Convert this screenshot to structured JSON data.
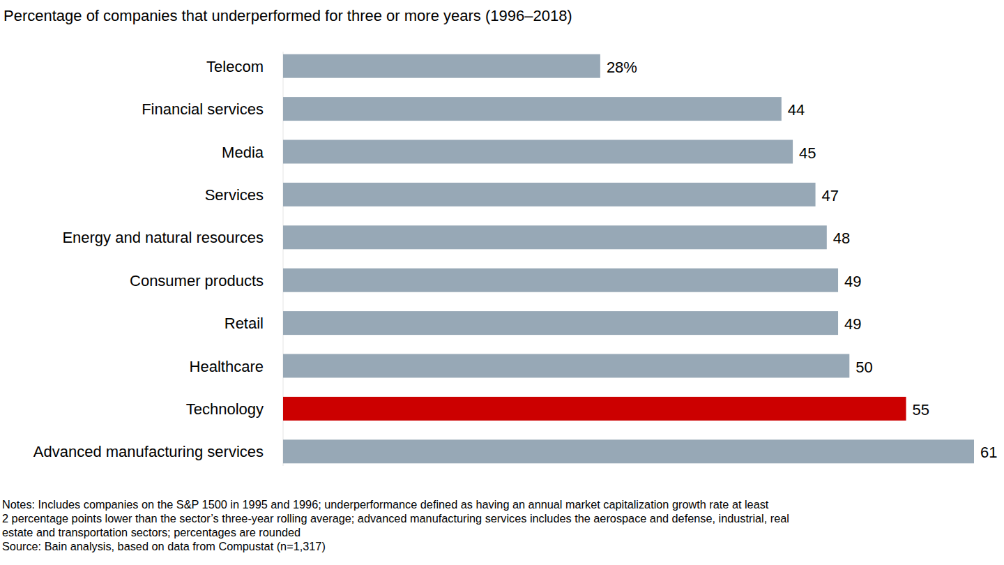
{
  "chart_data": {
    "type": "bar",
    "orientation": "horizontal",
    "title": "Percentage of companies that underperformed for three or more years (1996–2018)",
    "categories": [
      "Telecom",
      "Financial services",
      "Media",
      "Services",
      "Energy and natural resources",
      "Consumer products",
      "Retail",
      "Healthcare",
      "Technology",
      "Advanced manufacturing services"
    ],
    "values": [
      28,
      44,
      45,
      47,
      48,
      49,
      49,
      50,
      55,
      61
    ],
    "value_labels": [
      "28%",
      "44",
      "45",
      "47",
      "48",
      "49",
      "49",
      "50",
      "55",
      "61"
    ],
    "colors": [
      "#97a8b6",
      "#97a8b6",
      "#97a8b6",
      "#97a8b6",
      "#97a8b6",
      "#97a8b6",
      "#97a8b6",
      "#97a8b6",
      "#cc0000",
      "#97a8b6"
    ],
    "xlim": [
      0,
      61
    ],
    "data_labels": true,
    "tick_labels": "y",
    "grid": false,
    "notes": [
      "Notes: Includes companies on the S&P 1500 in 1995 and 1996; underperformance defined as having an annual market capitalization growth rate at least",
      "2 percentage points lower than the sector’s three-year rolling average; advanced manufacturing services includes the aerospace and defense, industrial, real",
      "estate and transportation sectors; percentages are rounded"
    ],
    "source": "Source: Bain analysis, based on data from Compustat (n=1,317)"
  }
}
